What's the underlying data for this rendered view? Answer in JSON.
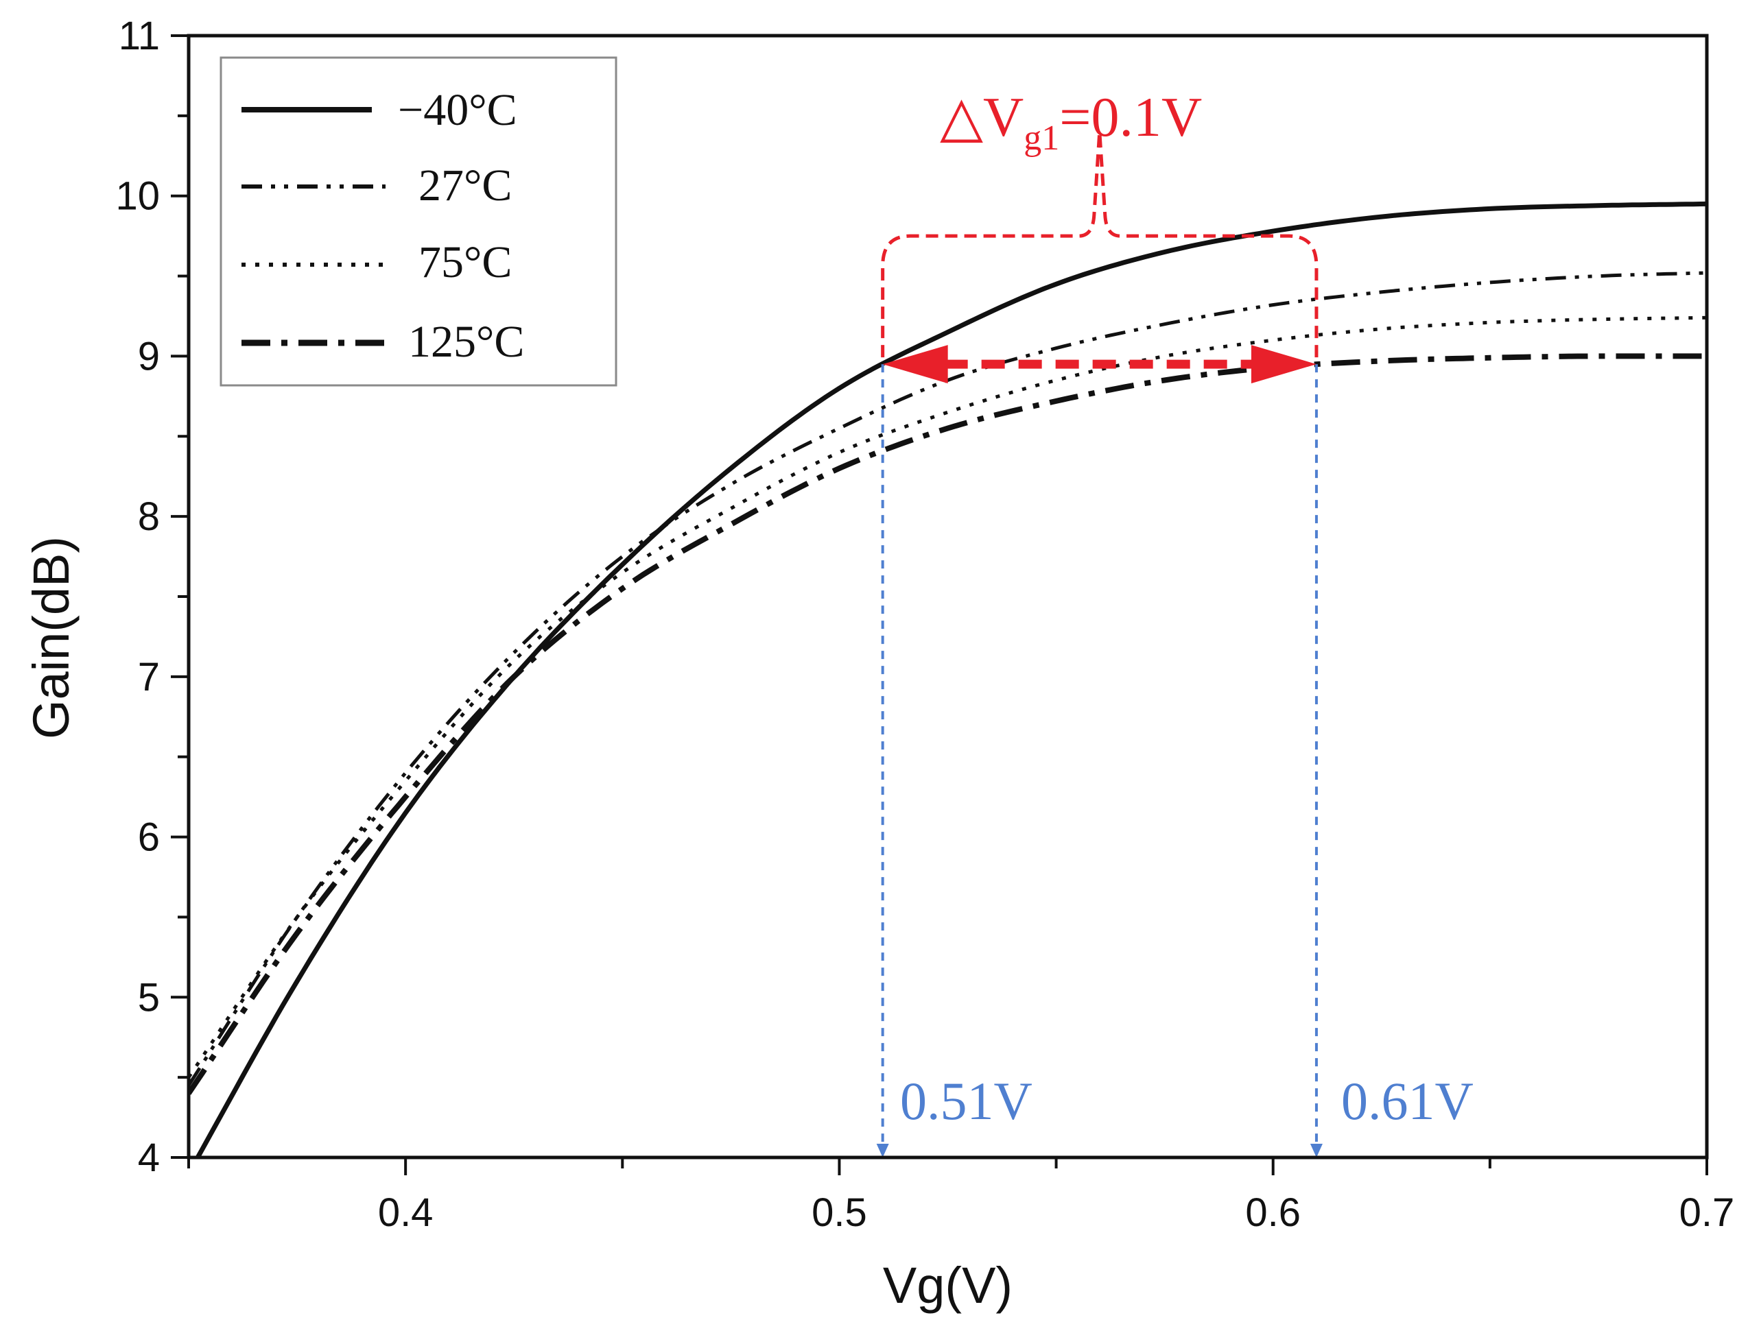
{
  "chart_data": {
    "type": "line",
    "title": "",
    "xlabel": "Vg(V)",
    "ylabel": "Gain(dB)",
    "xlim": [
      0.35,
      0.7
    ],
    "ylim": [
      4,
      11
    ],
    "xticks": [
      0.4,
      0.5,
      0.6,
      0.7
    ],
    "xtick_labels": [
      "0.4",
      "0.5",
      "0.6",
      "0.7"
    ],
    "yticks": [
      4,
      5,
      6,
      7,
      8,
      9,
      10,
      11
    ],
    "ytick_labels": [
      "4",
      "5",
      "6",
      "7",
      "8",
      "9",
      "10",
      "11"
    ],
    "grid": false,
    "legend_position": "top-left",
    "x": [
      0.35,
      0.375,
      0.4,
      0.425,
      0.45,
      0.475,
      0.5,
      0.525,
      0.55,
      0.575,
      0.6,
      0.625,
      0.65,
      0.675,
      0.7
    ],
    "series": [
      {
        "name": "−40°C",
        "style": "solid",
        "values": [
          3.9,
          5.1,
          6.15,
          7.0,
          7.7,
          8.3,
          8.8,
          9.15,
          9.45,
          9.65,
          9.78,
          9.87,
          9.92,
          9.94,
          9.95
        ]
      },
      {
        "name": "27°C",
        "style": "dash-dot-dot",
        "values": [
          4.45,
          5.5,
          6.4,
          7.15,
          7.75,
          8.2,
          8.55,
          8.85,
          9.05,
          9.2,
          9.32,
          9.4,
          9.46,
          9.5,
          9.52
        ]
      },
      {
        "name": "75°C",
        "style": "dotted",
        "values": [
          4.5,
          5.5,
          6.35,
          7.1,
          7.65,
          8.05,
          8.4,
          8.65,
          8.85,
          9.0,
          9.1,
          9.17,
          9.21,
          9.23,
          9.24
        ]
      },
      {
        "name": "125°C",
        "style": "dash-dot",
        "values": [
          4.4,
          5.4,
          6.25,
          7.0,
          7.55,
          7.95,
          8.3,
          8.55,
          8.72,
          8.85,
          8.93,
          8.97,
          8.99,
          9.0,
          9.0
        ]
      }
    ],
    "annotations": {
      "delta_prefix": "△V",
      "delta_sub": "g1",
      "delta_suffix": "=0.1V",
      "left_marker_label": "0.51V",
      "right_marker_label": "0.61V",
      "left_marker_x": 0.51,
      "right_marker_x": 0.61,
      "arrow_level_y": 8.95,
      "brace_top_y": 9.75,
      "brace_peak_y": 10.4
    },
    "colors": {
      "axis": "#111111",
      "curves": "#111111",
      "delta_annotation": "#e8202a",
      "marker_lines": "#4f7fd0"
    }
  }
}
